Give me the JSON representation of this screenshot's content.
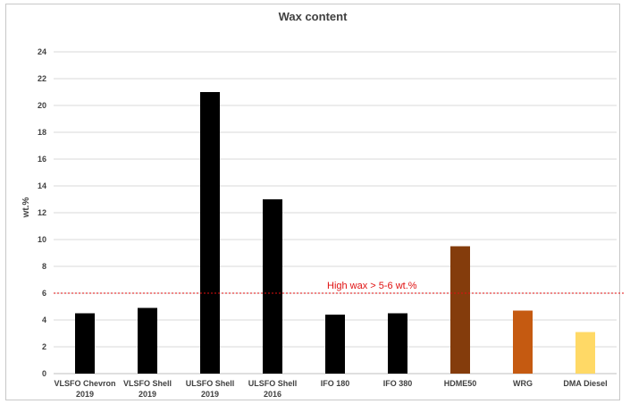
{
  "chart_data": {
    "type": "bar",
    "title": "Wax content",
    "ylabel": "wt.%",
    "xlabel": "",
    "ylim": [
      0,
      24
    ],
    "yticks": [
      0,
      2,
      4,
      6,
      8,
      10,
      12,
      14,
      16,
      18,
      20,
      22,
      24
    ],
    "grid": true,
    "categories": [
      [
        "VLSFO Chevron",
        "2019"
      ],
      [
        "VLSFO Shell",
        "2019"
      ],
      [
        "ULSFO Shell",
        "2019"
      ],
      [
        "ULSFO Shell",
        "2016"
      ],
      [
        "IFO 180"
      ],
      [
        "IFO 380"
      ],
      [
        "HDME50"
      ],
      [
        "WRG"
      ],
      [
        "DMA Diesel"
      ]
    ],
    "values": [
      4.5,
      4.9,
      21.0,
      13.0,
      4.4,
      4.5,
      9.5,
      4.7,
      3.1
    ],
    "bar_colors": [
      "#000000",
      "#000000",
      "#000000",
      "#000000",
      "#000000",
      "#000000",
      "#843c0c",
      "#c55a11",
      "#ffd966"
    ],
    "reference_line": {
      "value": 6,
      "label": "High wax > 5-6 wt.%",
      "color": "#e01010",
      "style": "dotted"
    }
  }
}
